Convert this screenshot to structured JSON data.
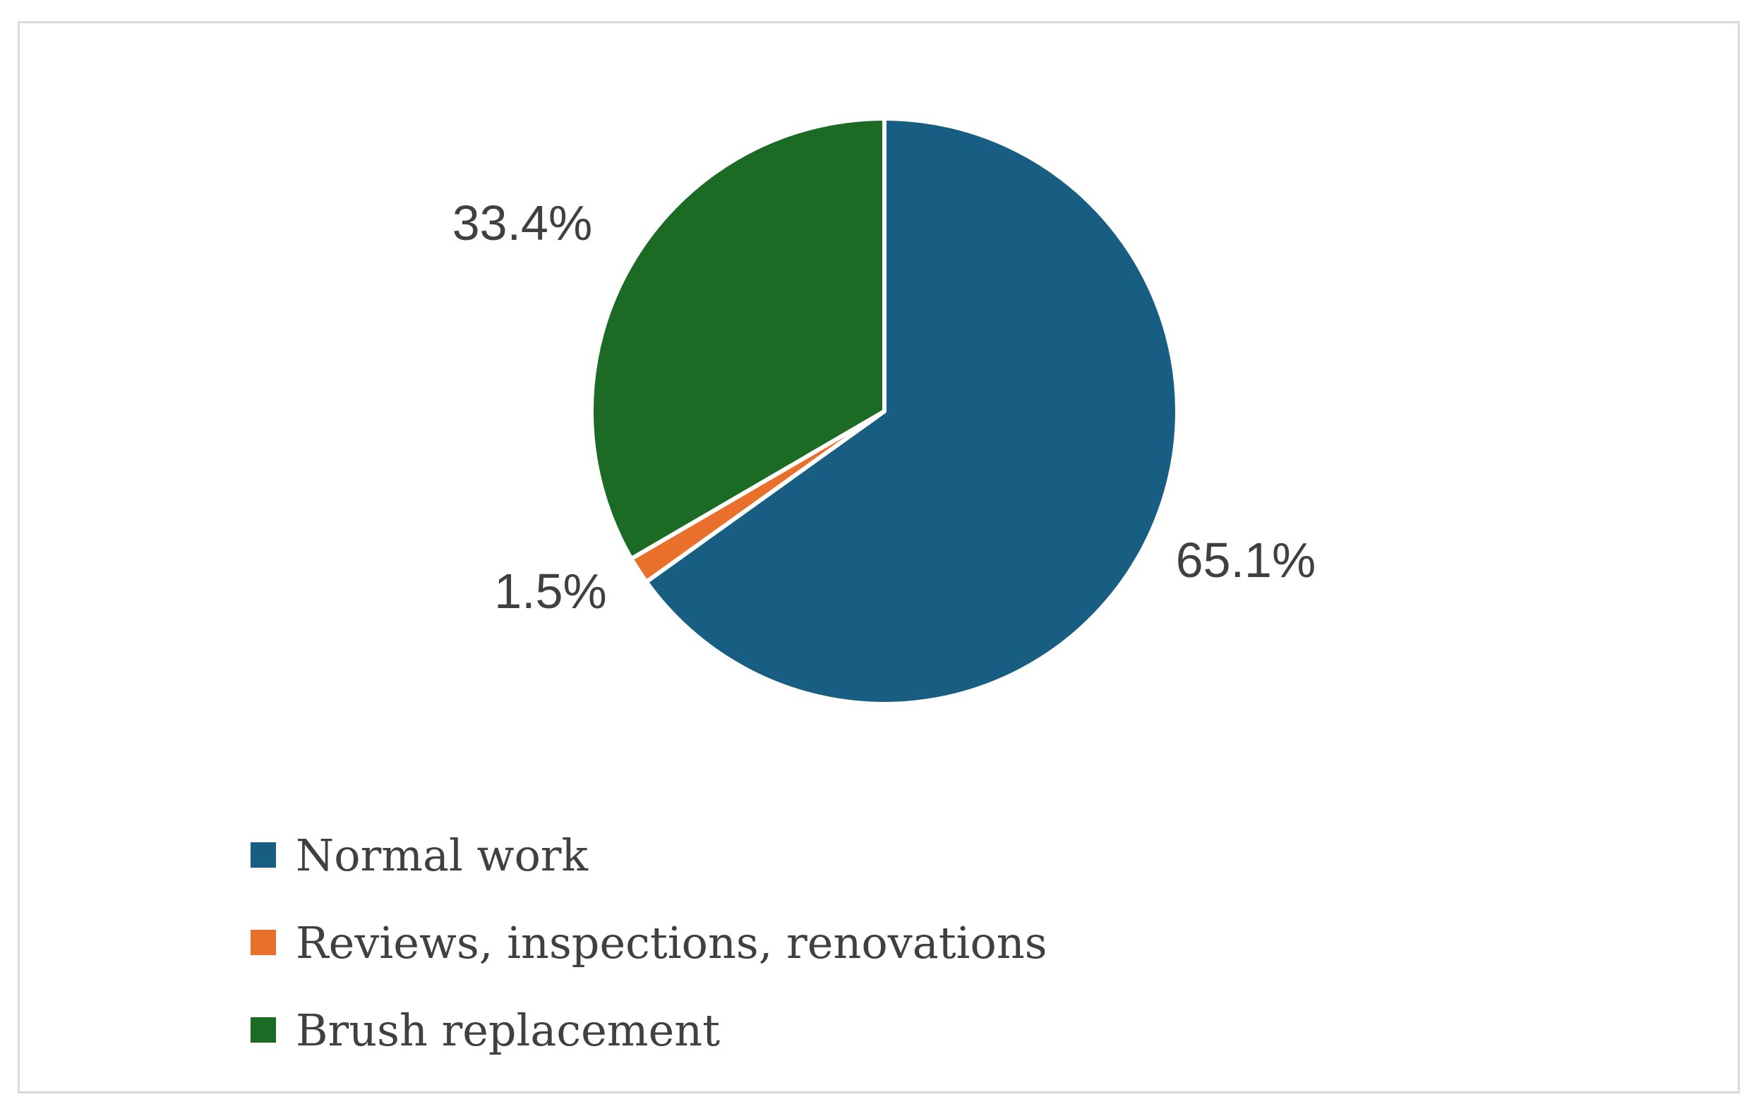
{
  "chart_data": {
    "type": "pie",
    "categories": [
      "Normal work",
      "Reviews, inspections, renovations",
      "Brush replacement"
    ],
    "values": [
      65.1,
      1.5,
      33.4
    ],
    "data_labels": [
      "65.1%",
      "1.5%",
      "33.4%"
    ],
    "colors": [
      "#185d82",
      "#e8702a",
      "#1b6b24"
    ],
    "start_angle_deg": 0,
    "direction": "clockwise",
    "legend_position": "bottom-left"
  }
}
